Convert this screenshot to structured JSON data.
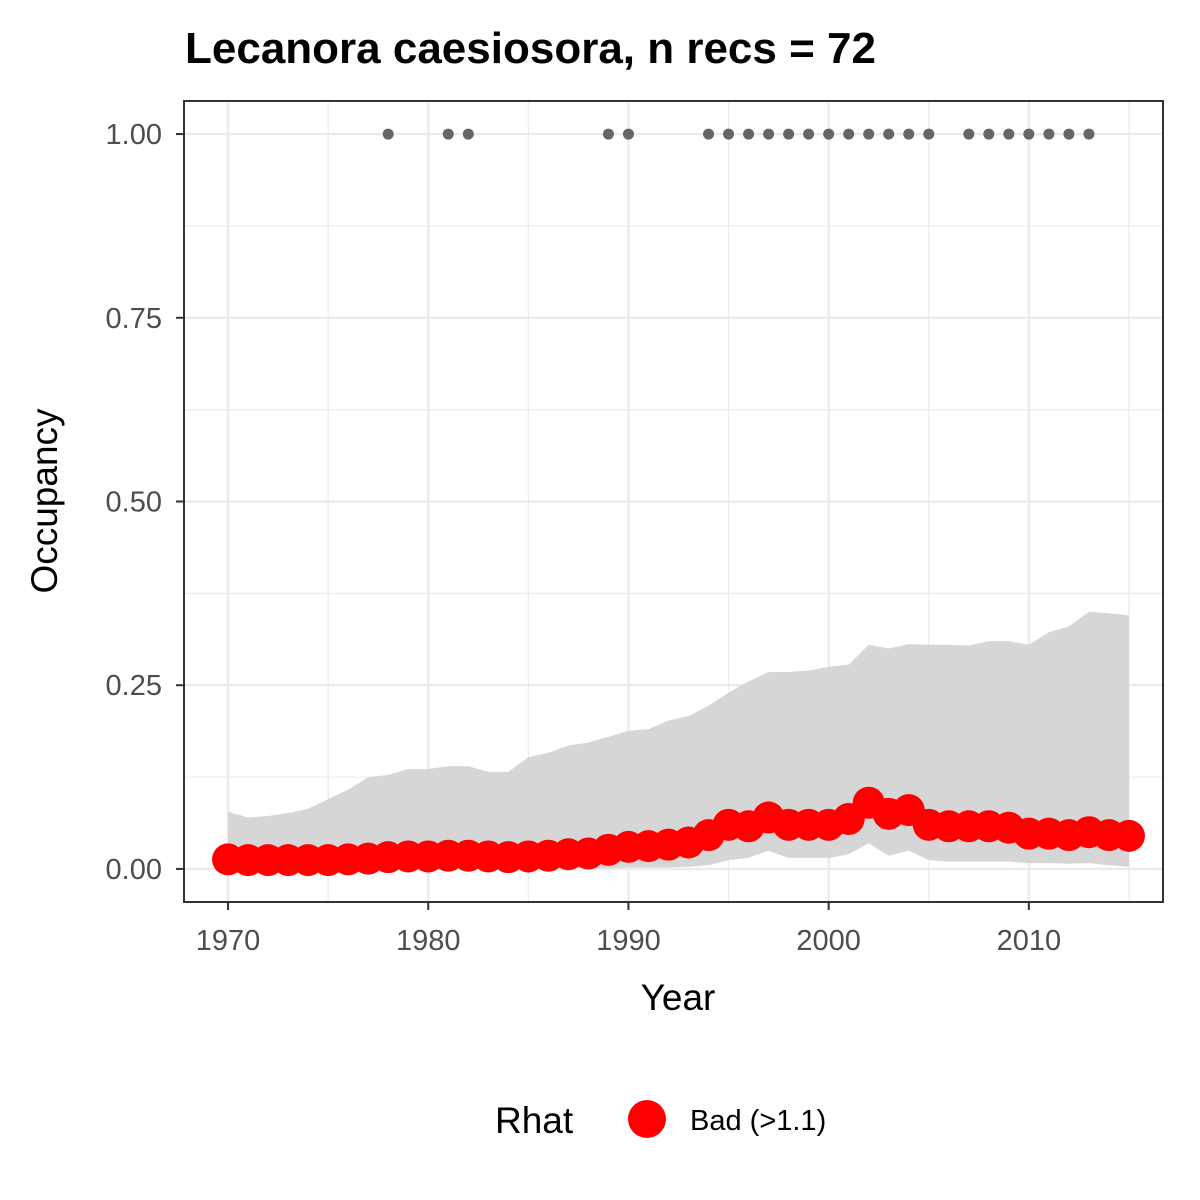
{
  "chart_data": {
    "type": "line",
    "title": "Lecanora caesiosora, n recs = 72",
    "xlabel": "Year",
    "ylabel": "Occupancy",
    "xlim": [
      1967.8,
      2016.7
    ],
    "ylim": [
      -0.045,
      1.045
    ],
    "x_ticks": [
      1970,
      1980,
      1990,
      2000,
      2010
    ],
    "x_tick_labels": [
      "1970",
      "1980",
      "1990",
      "2000",
      "2010"
    ],
    "y_ticks": [
      0,
      0.25,
      0.5,
      0.75,
      1.0
    ],
    "y_tick_labels": [
      "0.00",
      "0.25",
      "0.50",
      "0.75",
      "1.00"
    ],
    "grid": true,
    "legend_position": "bottom",
    "legend": {
      "title": "Rhat",
      "entries": [
        {
          "label": "Bad (>1.1)",
          "color": "#ff0000"
        }
      ]
    },
    "colors": {
      "occupancy_points": "#ff0000",
      "ribbon": "#d4d4d4",
      "record_points": "#666666",
      "grid": "#ebebeb",
      "panel_border": "#333333"
    },
    "years": [
      1970,
      1971,
      1972,
      1973,
      1974,
      1975,
      1976,
      1977,
      1978,
      1979,
      1980,
      1981,
      1982,
      1983,
      1984,
      1985,
      1986,
      1987,
      1988,
      1989,
      1990,
      1991,
      1992,
      1993,
      1994,
      1995,
      1996,
      1997,
      1998,
      1999,
      2000,
      2001,
      2002,
      2003,
      2004,
      2005,
      2006,
      2007,
      2008,
      2009,
      2010,
      2011,
      2012,
      2013,
      2014,
      2015
    ],
    "series": [
      {
        "name": "Occupancy",
        "values": [
          0.013,
          0.012,
          0.012,
          0.012,
          0.012,
          0.012,
          0.013,
          0.014,
          0.016,
          0.017,
          0.017,
          0.018,
          0.018,
          0.017,
          0.016,
          0.017,
          0.018,
          0.02,
          0.021,
          0.026,
          0.03,
          0.031,
          0.033,
          0.036,
          0.046,
          0.06,
          0.058,
          0.07,
          0.06,
          0.06,
          0.06,
          0.068,
          0.09,
          0.075,
          0.08,
          0.06,
          0.058,
          0.058,
          0.058,
          0.056,
          0.048,
          0.048,
          0.046,
          0.05,
          0.046,
          0.045
        ],
        "rhat": [
          "Bad (>1.1)",
          "Bad (>1.1)",
          "Bad (>1.1)",
          "Bad (>1.1)",
          "Bad (>1.1)",
          "Bad (>1.1)",
          "Bad (>1.1)",
          "Bad (>1.1)",
          "Bad (>1.1)",
          "Bad (>1.1)",
          "Bad (>1.1)",
          "Bad (>1.1)",
          "Bad (>1.1)",
          "Bad (>1.1)",
          "Bad (>1.1)",
          "Bad (>1.1)",
          "Bad (>1.1)",
          "Bad (>1.1)",
          "Bad (>1.1)",
          "Bad (>1.1)",
          "Bad (>1.1)",
          "Bad (>1.1)",
          "Bad (>1.1)",
          "Bad (>1.1)",
          "Bad (>1.1)",
          "Bad (>1.1)",
          "Bad (>1.1)",
          "Bad (>1.1)",
          "Bad (>1.1)",
          "Bad (>1.1)",
          "Bad (>1.1)",
          "Bad (>1.1)",
          "Bad (>1.1)",
          "Bad (>1.1)",
          "Bad (>1.1)",
          "Bad (>1.1)",
          "Bad (>1.1)",
          "Bad (>1.1)",
          "Bad (>1.1)",
          "Bad (>1.1)",
          "Bad (>1.1)",
          "Bad (>1.1)",
          "Bad (>1.1)",
          "Bad (>1.1)",
          "Bad (>1.1)",
          "Bad (>1.1)"
        ]
      }
    ],
    "ribbon": {
      "lower": [
        0.001,
        0.001,
        0.001,
        0.001,
        0.001,
        0.001,
        0.001,
        0.001,
        0.001,
        0.001,
        0.001,
        0.001,
        0.001,
        0.001,
        0.001,
        0.001,
        0.001,
        0.001,
        0.001,
        0.001,
        0.002,
        0.002,
        0.002,
        0.003,
        0.005,
        0.012,
        0.015,
        0.025,
        0.015,
        0.015,
        0.015,
        0.02,
        0.035,
        0.018,
        0.025,
        0.012,
        0.01,
        0.01,
        0.01,
        0.01,
        0.008,
        0.008,
        0.007,
        0.008,
        0.005,
        0.003
      ],
      "upper": [
        0.078,
        0.07,
        0.072,
        0.076,
        0.082,
        0.095,
        0.108,
        0.125,
        0.128,
        0.136,
        0.136,
        0.14,
        0.14,
        0.132,
        0.132,
        0.152,
        0.158,
        0.168,
        0.172,
        0.18,
        0.188,
        0.19,
        0.202,
        0.208,
        0.222,
        0.24,
        0.255,
        0.268,
        0.268,
        0.27,
        0.275,
        0.278,
        0.305,
        0.3,
        0.306,
        0.305,
        0.305,
        0.304,
        0.31,
        0.31,
        0.305,
        0.322,
        0.33,
        0.35,
        0.348,
        0.345
      ]
    },
    "records": {
      "y": 1.0,
      "years": [
        1978,
        1981,
        1982,
        1989,
        1990,
        1994,
        1995,
        1996,
        1997,
        1998,
        1999,
        2000,
        2001,
        2002,
        2003,
        2004,
        2005,
        2007,
        2008,
        2009,
        2010,
        2011,
        2012,
        2013
      ]
    }
  }
}
